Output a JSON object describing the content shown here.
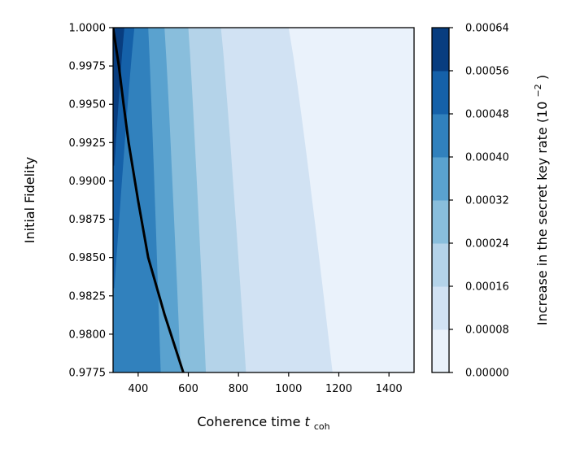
{
  "chart_data": {
    "type": "contour",
    "xlabel": "Coherence time",
    "xlabel_math": "t",
    "xlabel_sub": "coh",
    "ylabel": "Initial Fidelity",
    "colorbar_label": "Increase in the secret key rate (10",
    "colorbar_label_exp": "−2",
    "colorbar_label_close": ")",
    "xlim": [
      300,
      1500
    ],
    "ylim": [
      0.9775,
      1.0
    ],
    "x_ticks": [
      400,
      600,
      800,
      1000,
      1200,
      1400
    ],
    "y_ticks": [
      "0.9775",
      "0.9800",
      "0.9825",
      "0.9850",
      "0.9875",
      "0.9900",
      "0.9925",
      "0.9950",
      "0.9975",
      "1.0000"
    ],
    "y_tick_values": [
      0.9775,
      0.98,
      0.9825,
      0.985,
      0.9875,
      0.99,
      0.9925,
      0.995,
      0.9975,
      1.0
    ],
    "colorbar_ticks": [
      "0.00000",
      "0.00008",
      "0.00016",
      "0.00024",
      "0.00032",
      "0.00040",
      "0.00048",
      "0.00056",
      "0.00064"
    ],
    "levels": [
      0.0,
      8e-05,
      0.00016,
      0.00024,
      0.00032,
      0.0004,
      0.00048,
      0.00056,
      0.00064
    ],
    "level_colors": [
      "#eaf2fb",
      "#d1e2f3",
      "#b4d3e9",
      "#89bedc",
      "#5aa2cf",
      "#3181bd",
      "#1561a9",
      "#083d7f"
    ],
    "contour_boundaries": [
      {
        "level": 8e-05,
        "fidelity": [
          1.0,
          0.9775
        ],
        "coherence_time": [
          1000,
          1175
        ]
      },
      {
        "level": 0.00016,
        "fidelity": [
          1.0,
          0.9775
        ],
        "coherence_time": [
          730,
          830
        ]
      },
      {
        "level": 0.00024,
        "fidelity": [
          1.0,
          0.9775
        ],
        "coherence_time": [
          600,
          670
        ]
      },
      {
        "level": 0.00032,
        "fidelity": [
          1.0,
          0.9775
        ],
        "coherence_time": [
          505,
          570
        ]
      },
      {
        "level": 0.0004,
        "fidelity": [
          1.0,
          0.9775
        ],
        "coherence_time": [
          440,
          490
        ]
      },
      {
        "level": 0.00048,
        "fidelity": [
          1.0,
          0.983
        ],
        "coherence_time": [
          385,
          305
        ]
      },
      {
        "level": 0.00056,
        "fidelity": [
          1.0,
          0.991
        ],
        "coherence_time": [
          345,
          305
        ]
      }
    ],
    "black_line": {
      "coherence_time": [
        300,
        323,
        342,
        362,
        400,
        440,
        505,
        580
      ],
      "fidelity": [
        1.0,
        0.9975,
        0.995,
        0.9925,
        0.9887,
        0.985,
        0.9813,
        0.9775
      ]
    }
  }
}
